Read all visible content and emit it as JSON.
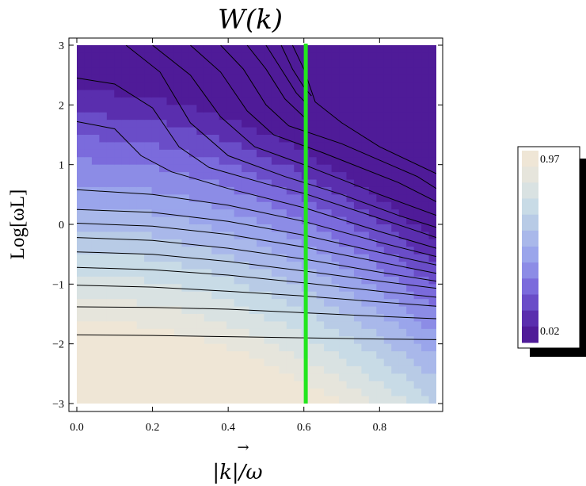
{
  "chart_data": {
    "type": "contour",
    "title": "W(k)",
    "xlabel": "|k|/ω",
    "ylabel": "Log[ωL]",
    "xlim": [
      0.0,
      0.95
    ],
    "ylim": [
      -3,
      3
    ],
    "xticks": [
      "0.0",
      "0.2",
      "0.4",
      "0.6",
      "0.8"
    ],
    "xtick_values": [
      0.0,
      0.2,
      0.4,
      0.6,
      0.8
    ],
    "yticks": [
      "−3",
      "−2",
      "−1",
      "0",
      "1",
      "2",
      "3"
    ],
    "ytick_values": [
      -3,
      -2,
      -1,
      0,
      1,
      2,
      3
    ],
    "vertical_marker": {
      "x": 0.605,
      "color": "#22e61e"
    },
    "colorbar": {
      "max_label": "0.97",
      "min_label": "0.02",
      "colors_top_to_bottom": [
        "#efe6d6",
        "#e6e5dc",
        "#d9e2e2",
        "#c8dbe6",
        "#b8cbe6",
        "#a9b8ea",
        "#9aa5eb",
        "#8c8ce6",
        "#7b6bdc",
        "#6a4dc8",
        "#5a2eae",
        "#4f1b98"
      ]
    },
    "contours_approx": [
      {
        "level_index": 1,
        "points": [
          [
            0.0,
            -1.85
          ],
          [
            0.2,
            -1.86
          ],
          [
            0.4,
            -1.88
          ],
          [
            0.6,
            -1.9
          ],
          [
            0.8,
            -1.92
          ],
          [
            0.95,
            -1.93
          ]
        ]
      },
      {
        "level_index": 2,
        "points": [
          [
            0.0,
            -1.38
          ],
          [
            0.2,
            -1.39
          ],
          [
            0.4,
            -1.42
          ],
          [
            0.6,
            -1.48
          ],
          [
            0.8,
            -1.54
          ],
          [
            0.95,
            -1.58
          ]
        ]
      },
      {
        "level_index": 3,
        "points": [
          [
            0.0,
            -1.02
          ],
          [
            0.2,
            -1.05
          ],
          [
            0.4,
            -1.12
          ],
          [
            0.6,
            -1.2
          ],
          [
            0.8,
            -1.3
          ],
          [
            0.95,
            -1.37
          ]
        ]
      },
      {
        "level_index": 4,
        "points": [
          [
            0.0,
            -0.72
          ],
          [
            0.2,
            -0.76
          ],
          [
            0.4,
            -0.85
          ],
          [
            0.6,
            -0.98
          ],
          [
            0.8,
            -1.12
          ],
          [
            0.95,
            -1.22
          ]
        ]
      },
      {
        "level_index": 5,
        "points": [
          [
            0.0,
            -0.46
          ],
          [
            0.2,
            -0.5
          ],
          [
            0.4,
            -0.62
          ],
          [
            0.6,
            -0.78
          ],
          [
            0.8,
            -0.95
          ],
          [
            0.95,
            -1.07
          ]
        ]
      },
      {
        "level_index": 6,
        "points": [
          [
            0.0,
            -0.22
          ],
          [
            0.2,
            -0.27
          ],
          [
            0.4,
            -0.4
          ],
          [
            0.6,
            -0.58
          ],
          [
            0.8,
            -0.8
          ],
          [
            0.95,
            -0.95
          ]
        ]
      },
      {
        "level_index": 7,
        "points": [
          [
            0.0,
            0.02
          ],
          [
            0.2,
            -0.03
          ],
          [
            0.4,
            -0.17
          ],
          [
            0.6,
            -0.38
          ],
          [
            0.8,
            -0.63
          ],
          [
            0.95,
            -0.82
          ]
        ]
      },
      {
        "level_index": 8,
        "points": [
          [
            0.0,
            0.25
          ],
          [
            0.2,
            0.2
          ],
          [
            0.4,
            0.05
          ],
          [
            0.6,
            -0.18
          ],
          [
            0.8,
            -0.47
          ],
          [
            0.95,
            -0.68
          ]
        ]
      },
      {
        "level_index": 9,
        "points": [
          [
            0.0,
            0.58
          ],
          [
            0.2,
            0.5
          ],
          [
            0.4,
            0.32
          ],
          [
            0.6,
            0.05
          ],
          [
            0.8,
            -0.3
          ],
          [
            0.95,
            -0.54
          ]
        ]
      },
      {
        "level_index": 10,
        "points": [
          [
            0.0,
            1.72
          ],
          [
            0.1,
            1.6
          ],
          [
            0.17,
            1.15
          ],
          [
            0.25,
            0.88
          ],
          [
            0.4,
            0.6
          ],
          [
            0.6,
            0.28
          ],
          [
            0.8,
            -0.12
          ],
          [
            0.95,
            -0.4
          ]
        ]
      },
      {
        "level_index": 11,
        "points": [
          [
            0.0,
            2.45
          ],
          [
            0.1,
            2.35
          ],
          [
            0.2,
            1.95
          ],
          [
            0.27,
            1.3
          ],
          [
            0.35,
            0.95
          ],
          [
            0.5,
            0.68
          ],
          [
            0.6,
            0.52
          ],
          [
            0.8,
            0.1
          ],
          [
            0.95,
            -0.22
          ]
        ]
      },
      {
        "level_index": 12,
        "points": [
          [
            0.13,
            3.0
          ],
          [
            0.22,
            2.55
          ],
          [
            0.3,
            1.7
          ],
          [
            0.4,
            1.15
          ],
          [
            0.55,
            0.8
          ],
          [
            0.7,
            0.5
          ],
          [
            0.85,
            0.15
          ],
          [
            0.95,
            -0.05
          ]
        ]
      },
      {
        "level_index": 13,
        "points": [
          [
            0.2,
            3.0
          ],
          [
            0.3,
            2.5
          ],
          [
            0.38,
            1.8
          ],
          [
            0.47,
            1.3
          ],
          [
            0.6,
            1.0
          ],
          [
            0.8,
            0.5
          ],
          [
            0.95,
            0.15
          ]
        ]
      },
      {
        "level_index": 14,
        "points": [
          [
            0.3,
            3.0
          ],
          [
            0.38,
            2.55
          ],
          [
            0.45,
            1.9
          ],
          [
            0.52,
            1.5
          ],
          [
            0.65,
            1.2
          ],
          [
            0.85,
            0.7
          ],
          [
            0.95,
            0.38
          ]
        ]
      },
      {
        "level_index": 15,
        "points": [
          [
            0.38,
            3.0
          ],
          [
            0.44,
            2.6
          ],
          [
            0.5,
            2.0
          ],
          [
            0.56,
            1.65
          ],
          [
            0.7,
            1.35
          ],
          [
            0.9,
            0.8
          ],
          [
            0.95,
            0.6
          ]
        ]
      },
      {
        "level_index": 16,
        "points": [
          [
            0.45,
            3.0
          ],
          [
            0.5,
            2.6
          ],
          [
            0.55,
            2.1
          ],
          [
            0.6,
            1.8
          ]
        ]
      },
      {
        "level_index": 17,
        "points": [
          [
            0.5,
            3.0
          ],
          [
            0.54,
            2.6
          ],
          [
            0.58,
            2.2
          ],
          [
            0.61,
            2.0
          ]
        ]
      },
      {
        "level_index": 18,
        "points": [
          [
            0.54,
            3.0
          ],
          [
            0.57,
            2.6
          ],
          [
            0.6,
            2.3
          ],
          [
            0.62,
            2.15
          ]
        ]
      },
      {
        "level_index": 19,
        "points": [
          [
            0.57,
            3.0
          ],
          [
            0.6,
            2.6
          ],
          [
            0.63,
            2.05
          ],
          [
            0.7,
            1.7
          ],
          [
            0.8,
            1.3
          ],
          [
            0.95,
            0.85
          ]
        ]
      }
    ]
  }
}
